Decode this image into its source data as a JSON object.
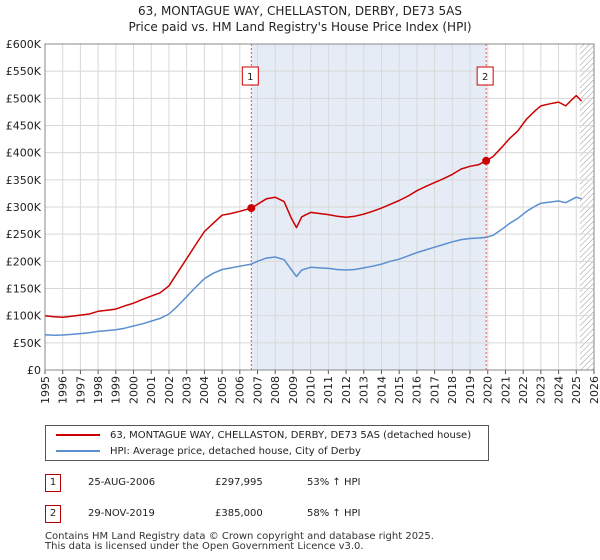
{
  "title": {
    "line1": "63, MONTAGUE WAY, CHELLASTON, DERBY, DE73 5AS",
    "line2": "Price paid vs. HM Land Registry's House Price Index (HPI)"
  },
  "chart_data": {
    "type": "line",
    "title": "63, MONTAGUE WAY, CHELLASTON, DERBY, DE73 5AS — Price paid vs. HM Land Registry's House Price Index (HPI)",
    "xlabel": "",
    "ylabel": "",
    "xlim": [
      1995,
      2026
    ],
    "ylim": [
      0,
      600000
    ],
    "x_ticks": [
      "1995",
      "1996",
      "1997",
      "1998",
      "1999",
      "2000",
      "2001",
      "2002",
      "2003",
      "2004",
      "2005",
      "2006",
      "2007",
      "2008",
      "2009",
      "2010",
      "2011",
      "2012",
      "2013",
      "2014",
      "2015",
      "2016",
      "2017",
      "2018",
      "2019",
      "2020",
      "2021",
      "2022",
      "2023",
      "2024",
      "2025",
      "2026"
    ],
    "y_ticks": [
      {
        "value": 0,
        "label": "£0"
      },
      {
        "value": 50000,
        "label": "£50K"
      },
      {
        "value": 100000,
        "label": "£100K"
      },
      {
        "value": 150000,
        "label": "£150K"
      },
      {
        "value": 200000,
        "label": "£200K"
      },
      {
        "value": 250000,
        "label": "£250K"
      },
      {
        "value": 300000,
        "label": "£300K"
      },
      {
        "value": 350000,
        "label": "£350K"
      },
      {
        "value": 400000,
        "label": "£400K"
      },
      {
        "value": 450000,
        "label": "£450K"
      },
      {
        "value": 500000,
        "label": "£500K"
      },
      {
        "value": 550000,
        "label": "£550K"
      },
      {
        "value": 600000,
        "label": "£600K"
      }
    ],
    "shaded_ranges": [
      [
        2006.65,
        2019.91
      ]
    ],
    "hatched_from": 2025.2,
    "series": [
      {
        "name": "63, MONTAGUE WAY, CHELLASTON, DERBY, DE73 5AS (detached house)",
        "color": "#cc0000",
        "points": [
          [
            1995.0,
            100000
          ],
          [
            1995.5,
            98000
          ],
          [
            1996.0,
            97000
          ],
          [
            1996.5,
            99000
          ],
          [
            1997.0,
            101000
          ],
          [
            1997.5,
            103000
          ],
          [
            1998.0,
            108000
          ],
          [
            1998.5,
            110000
          ],
          [
            1999.0,
            112000
          ],
          [
            1999.5,
            118000
          ],
          [
            2000.0,
            123000
          ],
          [
            2000.5,
            130000
          ],
          [
            2001.0,
            136000
          ],
          [
            2001.5,
            142000
          ],
          [
            2002.0,
            155000
          ],
          [
            2002.5,
            180000
          ],
          [
            2003.0,
            205000
          ],
          [
            2003.5,
            230000
          ],
          [
            2004.0,
            255000
          ],
          [
            2004.5,
            270000
          ],
          [
            2005.0,
            285000
          ],
          [
            2005.5,
            288000
          ],
          [
            2006.0,
            292000
          ],
          [
            2006.65,
            297995
          ],
          [
            2007.0,
            305000
          ],
          [
            2007.5,
            315000
          ],
          [
            2008.0,
            318000
          ],
          [
            2008.5,
            310000
          ],
          [
            2008.9,
            280000
          ],
          [
            2009.2,
            262000
          ],
          [
            2009.5,
            282000
          ],
          [
            2010.0,
            290000
          ],
          [
            2010.5,
            288000
          ],
          [
            2011.0,
            286000
          ],
          [
            2011.5,
            283000
          ],
          [
            2012.0,
            281000
          ],
          [
            2012.5,
            283000
          ],
          [
            2013.0,
            287000
          ],
          [
            2013.5,
            292000
          ],
          [
            2014.0,
            298000
          ],
          [
            2014.5,
            305000
          ],
          [
            2015.0,
            312000
          ],
          [
            2015.5,
            320000
          ],
          [
            2016.0,
            330000
          ],
          [
            2016.5,
            338000
          ],
          [
            2017.0,
            345000
          ],
          [
            2017.5,
            352000
          ],
          [
            2018.0,
            360000
          ],
          [
            2018.5,
            370000
          ],
          [
            2019.0,
            375000
          ],
          [
            2019.5,
            378000
          ],
          [
            2019.91,
            385000
          ],
          [
            2020.3,
            393000
          ],
          [
            2020.8,
            410000
          ],
          [
            2021.2,
            425000
          ],
          [
            2021.7,
            440000
          ],
          [
            2022.2,
            462000
          ],
          [
            2022.7,
            478000
          ],
          [
            2023.0,
            486000
          ],
          [
            2023.5,
            490000
          ],
          [
            2024.0,
            493000
          ],
          [
            2024.4,
            486000
          ],
          [
            2024.7,
            496000
          ],
          [
            2025.0,
            505000
          ],
          [
            2025.3,
            495000
          ]
        ]
      },
      {
        "name": "HPI: Average price, detached house, City of Derby",
        "color": "#5b8fd0",
        "points": [
          [
            1995.0,
            65000
          ],
          [
            1995.5,
            64000
          ],
          [
            1996.0,
            64500
          ],
          [
            1996.5,
            65500
          ],
          [
            1997.0,
            67000
          ],
          [
            1997.5,
            68500
          ],
          [
            1998.0,
            71000
          ],
          [
            1998.5,
            72500
          ],
          [
            1999.0,
            74000
          ],
          [
            1999.5,
            77000
          ],
          [
            2000.0,
            81000
          ],
          [
            2000.5,
            85000
          ],
          [
            2001.0,
            90000
          ],
          [
            2001.5,
            95000
          ],
          [
            2002.0,
            103000
          ],
          [
            2002.5,
            118000
          ],
          [
            2003.0,
            135000
          ],
          [
            2003.5,
            152000
          ],
          [
            2004.0,
            168000
          ],
          [
            2004.5,
            178000
          ],
          [
            2005.0,
            185000
          ],
          [
            2005.5,
            188000
          ],
          [
            2006.0,
            191000
          ],
          [
            2006.65,
            195000
          ],
          [
            2007.0,
            200000
          ],
          [
            2007.5,
            206000
          ],
          [
            2008.0,
            208000
          ],
          [
            2008.5,
            203000
          ],
          [
            2008.9,
            185000
          ],
          [
            2009.2,
            172000
          ],
          [
            2009.5,
            184000
          ],
          [
            2010.0,
            189000
          ],
          [
            2010.5,
            188000
          ],
          [
            2011.0,
            187000
          ],
          [
            2011.5,
            185000
          ],
          [
            2012.0,
            184000
          ],
          [
            2012.5,
            185000
          ],
          [
            2013.0,
            188000
          ],
          [
            2013.5,
            191000
          ],
          [
            2014.0,
            195000
          ],
          [
            2014.5,
            200000
          ],
          [
            2015.0,
            204000
          ],
          [
            2015.5,
            210000
          ],
          [
            2016.0,
            216000
          ],
          [
            2016.5,
            221000
          ],
          [
            2017.0,
            226000
          ],
          [
            2017.5,
            231000
          ],
          [
            2018.0,
            236000
          ],
          [
            2018.5,
            240000
          ],
          [
            2019.0,
            242000
          ],
          [
            2019.5,
            243000
          ],
          [
            2019.91,
            244000
          ],
          [
            2020.3,
            248000
          ],
          [
            2020.8,
            259000
          ],
          [
            2021.2,
            269000
          ],
          [
            2021.7,
            279000
          ],
          [
            2022.2,
            292000
          ],
          [
            2022.7,
            302000
          ],
          [
            2023.0,
            307000
          ],
          [
            2023.5,
            309000
          ],
          [
            2024.0,
            311000
          ],
          [
            2024.4,
            308000
          ],
          [
            2024.7,
            313000
          ],
          [
            2025.0,
            318000
          ],
          [
            2025.3,
            315000
          ]
        ]
      }
    ],
    "annotations": [
      {
        "label": "1",
        "x": 2006.65,
        "y": 297995
      },
      {
        "label": "2",
        "x": 2019.91,
        "y": 385000
      }
    ]
  },
  "legend": {
    "property_label": "63, MONTAGUE WAY, CHELLASTON, DERBY, DE73 5AS (detached house)",
    "hpi_label": "HPI: Average price, detached house, City of Derby",
    "property_color": "#cc0000",
    "hpi_color": "#5b8fd0"
  },
  "sales": [
    {
      "num": "1",
      "date": "25-AUG-2006",
      "price": "£297,995",
      "hpi": "53% ↑ HPI"
    },
    {
      "num": "2",
      "date": "29-NOV-2019",
      "price": "£385,000",
      "hpi": "58% ↑ HPI"
    }
  ],
  "footer": {
    "line1": "Contains HM Land Registry data © Crown copyright and database right 2025.",
    "line2": "This data is licensed under the Open Government Licence v3.0."
  }
}
